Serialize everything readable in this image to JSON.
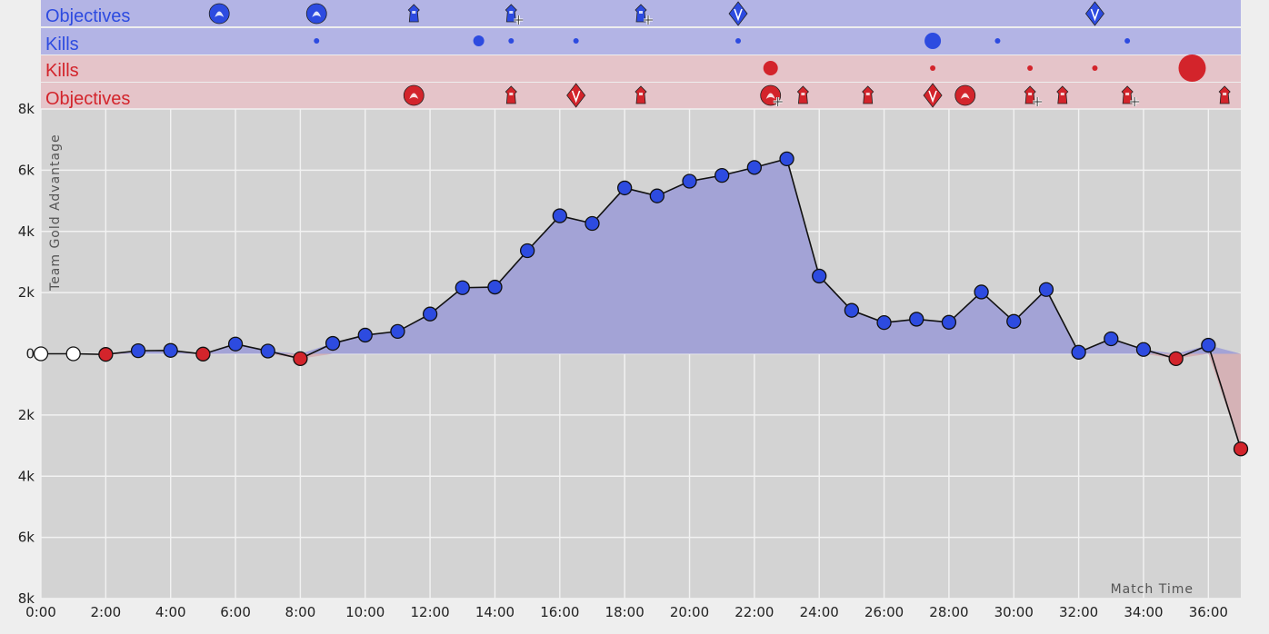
{
  "colors": {
    "blue": "#2d4be0",
    "red": "#d3242b",
    "blue_lane": "#b3b4e5",
    "red_lane": "#e5c4c9",
    "plot_bg": "#d3d3d3",
    "blue_area": "#a3a3d6",
    "red_area": "#d5b2b6",
    "neutral_point": "#ffffff"
  },
  "lanes": {
    "blue_objectives": "Objectives",
    "blue_kills": "Kills",
    "red_kills": "Kills",
    "red_objectives": "Objectives"
  },
  "chart_data": {
    "type": "area",
    "ylabel": "Team Gold Advantage",
    "xlabel": "Match Time",
    "xlim": [
      0,
      37
    ],
    "ylim": [
      -8000,
      8000
    ],
    "grid": true,
    "x_ticks": [
      "0:00",
      "2:00",
      "4:00",
      "6:00",
      "8:00",
      "10:00",
      "12:00",
      "14:00",
      "16:00",
      "18:00",
      "20:00",
      "22:00",
      "24:00",
      "26:00",
      "28:00",
      "30:00",
      "32:00",
      "34:00",
      "36:00"
    ],
    "y_ticks": [
      "8k",
      "6k",
      "4k",
      "2k",
      "0",
      "2k",
      "4k",
      "6k",
      "8k"
    ],
    "series": [
      {
        "x": [
          0,
          1,
          2,
          3,
          4,
          5,
          6,
          7,
          8,
          9,
          10,
          11,
          12,
          13,
          14,
          15,
          16,
          17,
          18,
          19,
          20,
          21,
          22,
          23,
          24,
          25,
          26,
          27,
          28,
          29,
          30,
          31,
          32,
          33,
          34,
          35,
          36,
          37
        ],
        "values": [
          0,
          0,
          -20,
          100,
          110,
          -10,
          320,
          90,
          -160,
          340,
          610,
          730,
          1300,
          2160,
          2180,
          3370,
          4510,
          4260,
          5420,
          5160,
          5640,
          5830,
          6090,
          6370,
          2540,
          1420,
          1020,
          1130,
          1030,
          2020,
          1060,
          2100,
          50,
          490,
          140,
          -160,
          280,
          -3110
        ]
      }
    ],
    "events": {
      "blue_objectives": [
        {
          "t": 5.5,
          "icon": "flame-drake-icon"
        },
        {
          "t": 8.5,
          "icon": "herald-icon"
        },
        {
          "t": 11.5,
          "icon": "turret-icon"
        },
        {
          "t": 14.5,
          "icon": "turret-plate-icon"
        },
        {
          "t": 18.5,
          "icon": "turret-plate-icon"
        },
        {
          "t": 21.5,
          "icon": "inhibitor-icon"
        },
        {
          "t": 32.5,
          "icon": "inhibitor-icon"
        }
      ],
      "blue_kills": [
        {
          "t": 8.5,
          "size": 3
        },
        {
          "t": 13.5,
          "size": 6
        },
        {
          "t": 14.5,
          "size": 3
        },
        {
          "t": 16.5,
          "size": 3
        },
        {
          "t": 21.5,
          "size": 3
        },
        {
          "t": 27.5,
          "size": 9
        },
        {
          "t": 29.5,
          "size": 3
        },
        {
          "t": 33.5,
          "size": 3
        }
      ],
      "red_kills": [
        {
          "t": 22.5,
          "size": 8
        },
        {
          "t": 27.5,
          "size": 3
        },
        {
          "t": 30.5,
          "size": 3
        },
        {
          "t": 32.5,
          "size": 3
        },
        {
          "t": 35.5,
          "size": 15
        }
      ],
      "red_objectives": [
        {
          "t": 11.5,
          "icon": "dragon-icon"
        },
        {
          "t": 14.5,
          "icon": "turret-icon"
        },
        {
          "t": 16.5,
          "icon": "inhibitor-icon"
        },
        {
          "t": 18.5,
          "icon": "turret-icon"
        },
        {
          "t": 22.5,
          "icon": "elder-plate-icon"
        },
        {
          "t": 23.5,
          "icon": "turret-icon"
        },
        {
          "t": 25.5,
          "icon": "turret-icon"
        },
        {
          "t": 27.5,
          "icon": "inhibitor-icon"
        },
        {
          "t": 28.5,
          "icon": "baron-icon"
        },
        {
          "t": 30.5,
          "icon": "nexus-turret-plate-icon"
        },
        {
          "t": 31.5,
          "icon": "turret-icon"
        },
        {
          "t": 33.5,
          "icon": "nexus-turret-plate-icon"
        },
        {
          "t": 36.5,
          "icon": "turret-icon"
        }
      ]
    }
  }
}
